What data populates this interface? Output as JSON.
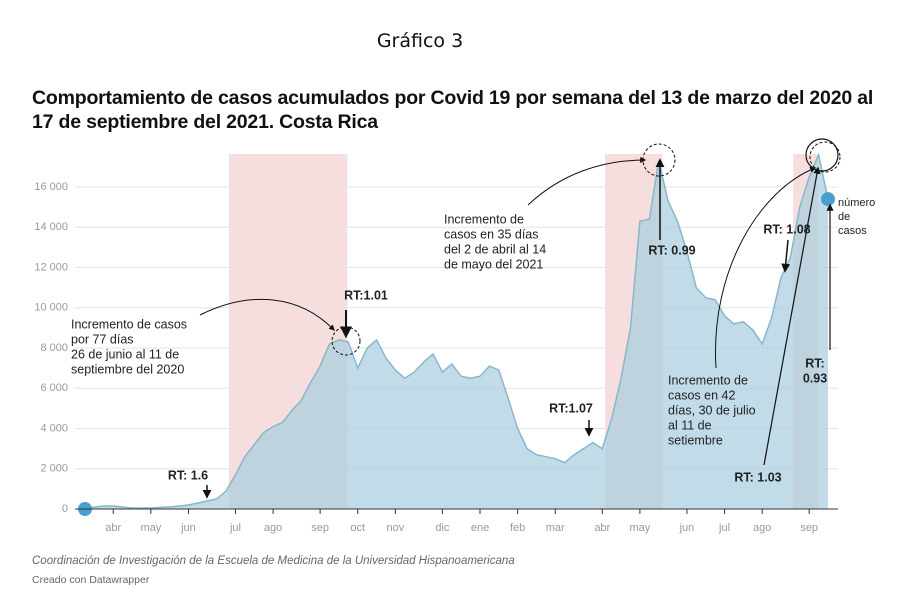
{
  "heading": "Gráfico 3",
  "chart_data": {
    "type": "area",
    "title": "Comportamiento de casos acumulados por Covid 19 por semana del 13 de marzo del 2020 al 17 de septiembre del 2021. Costa Rica",
    "categories": [
      null,
      null,
      null,
      "abr",
      null,
      null,
      null,
      "may",
      null,
      null,
      null,
      "jun",
      null,
      null,
      null,
      null,
      "jul",
      null,
      null,
      null,
      "ago",
      null,
      null,
      null,
      null,
      "sep",
      null,
      null,
      null,
      "oct",
      null,
      null,
      null,
      "nov",
      null,
      null,
      null,
      null,
      "dic",
      null,
      null,
      null,
      "ene",
      null,
      null,
      null,
      "feb",
      null,
      null,
      null,
      "mar",
      null,
      null,
      null,
      null,
      "abr",
      null,
      null,
      null,
      "may",
      null,
      null,
      null,
      null,
      "jun",
      null,
      null,
      null,
      "jul",
      null,
      null,
      null,
      "ago",
      null,
      null,
      null,
      null,
      "sep",
      null,
      null
    ],
    "values": [
      0,
      100,
      150,
      150,
      100,
      50,
      50,
      50,
      80,
      100,
      150,
      200,
      300,
      400,
      500,
      900,
      1700,
      2600,
      3200,
      3800,
      4100,
      4300,
      4900,
      5400,
      6300,
      7100,
      8200,
      8400,
      8300,
      7000,
      8000,
      8400,
      7500,
      6900,
      6500,
      6800,
      7300,
      7700,
      6800,
      7200,
      6600,
      6500,
      6600,
      7100,
      6900,
      5500,
      4000,
      3000,
      2700,
      2600,
      2500,
      2300,
      2700,
      3000,
      3300,
      3000,
      4500,
      6500,
      9000,
      14300,
      14400,
      17300,
      15300,
      14300,
      12800,
      11000,
      10500,
      10400,
      9600,
      9200,
      9300,
      8900,
      8200,
      9500,
      11500,
      12500,
      15000,
      16500,
      17600,
      15400
    ],
    "color": "#a9cfdf",
    "line_color": "#8ab6c9",
    "dot_color": "#4a9fd0",
    "highlight_color": "#f6dede",
    "highlights": [
      [
        15.3,
        27.9
      ],
      [
        55.3,
        61.4
      ],
      [
        75.3,
        77.9
      ]
    ],
    "ylim": [
      0,
      16000
    ],
    "yticks": [
      0,
      {
        "value": 2000,
        "label": "2 000"
      },
      {
        "value": 4000,
        "label": "4 000"
      },
      {
        "value": 6000,
        "label": "6 000"
      },
      {
        "value": 8000,
        "label": "8 000"
      },
      {
        "value": 10000,
        "label": "10 000"
      },
      {
        "value": 12000,
        "label": "12 000"
      },
      {
        "value": 14000,
        "label": "14 000"
      },
      {
        "value": 16000,
        "label": "16 000"
      }
    ],
    "grid": true,
    "annotations": [
      {
        "lines": [
          "RT: 1.6"
        ],
        "bold": true
      },
      {
        "lines": [
          "RT:1.01"
        ],
        "bold": true
      },
      {
        "lines": [
          "RT:1.07"
        ],
        "bold": true
      },
      {
        "lines": [
          "RT: 0.99"
        ],
        "bold": true
      },
      {
        "lines": [
          "RT: 1.08"
        ],
        "bold": true
      },
      {
        "lines": [
          "RT: 1.03"
        ],
        "bold": true,
        "color": "#c0392b"
      },
      {
        "lines": [
          "RT:",
          "0.93"
        ],
        "bold": true,
        "color": "#c0392b"
      },
      {
        "lines": [
          "Incremento de casos",
          "por 77 días",
          "26 de junio al 11 de",
          "septiembre del 2020"
        ]
      },
      {
        "lines": [
          "Incremento de",
          "casos en 35 días",
          "del 2 de abril al 14",
          "de mayo del 2021"
        ]
      },
      {
        "lines": [
          "Incremento de",
          "casos en 42",
          "días, 30 de julio",
          "al 11 de",
          "setiembre"
        ]
      },
      {
        "lines": [
          "número",
          "de",
          "casos"
        ],
        "color": "#4a9fd0",
        "small": true
      }
    ]
  },
  "source": "Coordinación de Investigación de la Escuela de Medicina de la Universidad Hispanoamericana",
  "credit": "Creado con Datawrapper"
}
